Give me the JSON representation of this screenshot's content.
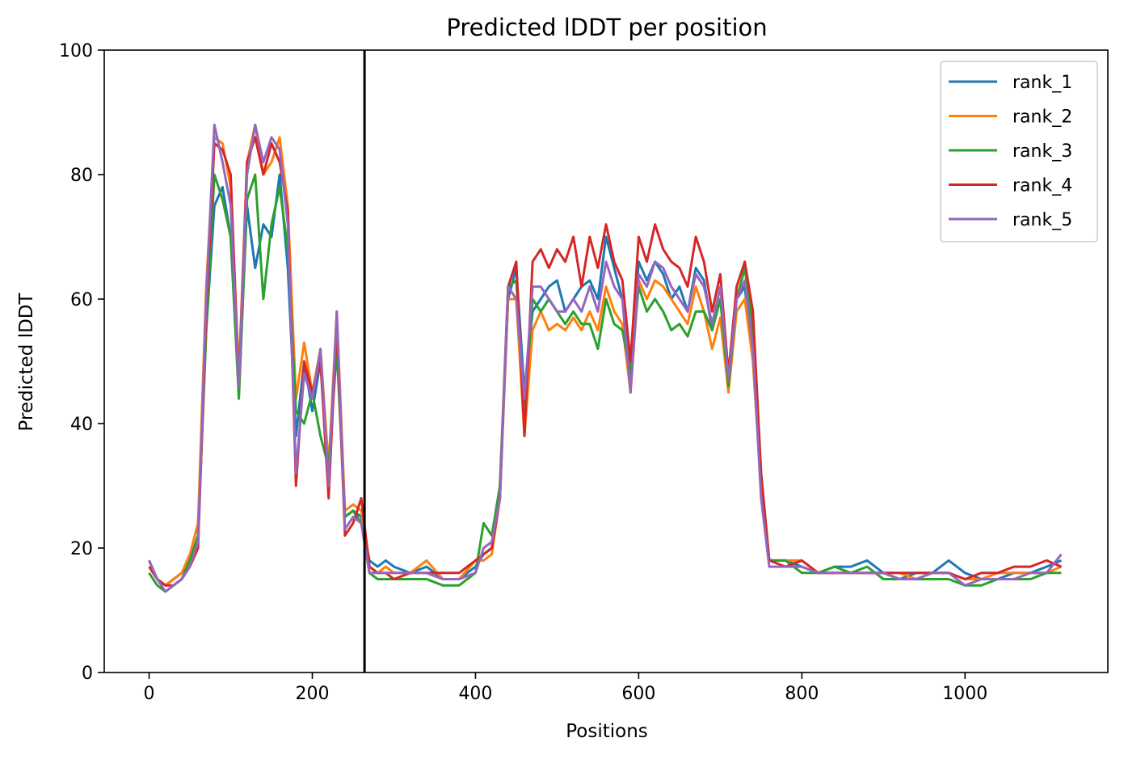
{
  "chart_data": {
    "type": "line",
    "title": "Predicted lDDT per position",
    "xlabel": "Positions",
    "ylabel": "Predicted lDDT",
    "xlim": [
      -55,
      1175
    ],
    "ylim": [
      0,
      100
    ],
    "xticks": [
      0,
      200,
      400,
      600,
      800,
      1000
    ],
    "yticks": [
      0,
      20,
      40,
      60,
      80,
      100
    ],
    "grid": false,
    "legend_position": "top-right",
    "vertical_lines": [
      {
        "x": 264,
        "color": "#000000"
      }
    ],
    "x": [
      0,
      10,
      20,
      30,
      40,
      50,
      60,
      70,
      80,
      90,
      100,
      110,
      120,
      130,
      140,
      150,
      160,
      170,
      180,
      190,
      200,
      210,
      220,
      230,
      240,
      250,
      260,
      270,
      280,
      290,
      300,
      320,
      340,
      360,
      380,
      400,
      410,
      420,
      430,
      440,
      450,
      460,
      470,
      480,
      490,
      500,
      510,
      520,
      530,
      540,
      550,
      560,
      570,
      580,
      590,
      600,
      610,
      620,
      630,
      640,
      650,
      660,
      670,
      680,
      690,
      700,
      710,
      720,
      730,
      740,
      750,
      760,
      780,
      800,
      820,
      840,
      860,
      880,
      900,
      920,
      940,
      960,
      980,
      1000,
      1020,
      1040,
      1060,
      1080,
      1100,
      1118
    ],
    "series": [
      {
        "name": "rank_1",
        "color": "#1f77b4",
        "values": [
          18,
          15,
          14,
          15,
          16,
          18,
          22,
          55,
          75,
          78,
          70,
          45,
          75,
          65,
          72,
          70,
          80,
          65,
          38,
          50,
          42,
          50,
          32,
          55,
          25,
          26,
          25,
          18,
          17,
          18,
          17,
          16,
          17,
          15,
          15,
          17,
          19,
          20,
          30,
          60,
          65,
          45,
          58,
          60,
          62,
          63,
          58,
          60,
          62,
          63,
          60,
          70,
          65,
          60,
          48,
          66,
          63,
          66,
          64,
          60,
          62,
          58,
          65,
          63,
          55,
          60,
          48,
          60,
          62,
          50,
          30,
          18,
          18,
          17,
          16,
          17,
          17,
          18,
          16,
          15,
          16,
          16,
          18,
          16,
          15,
          15,
          16,
          16,
          17,
          18
        ]
      },
      {
        "name": "rank_2",
        "color": "#ff7f0e",
        "values": [
          18,
          15,
          14,
          15,
          16,
          19,
          24,
          62,
          86,
          85,
          78,
          48,
          82,
          88,
          80,
          82,
          86,
          75,
          44,
          53,
          45,
          52,
          33,
          58,
          26,
          27,
          26,
          17,
          16,
          17,
          16,
          16,
          18,
          15,
          15,
          18,
          18,
          19,
          28,
          60,
          60,
          38,
          55,
          58,
          55,
          56,
          55,
          57,
          55,
          58,
          55,
          62,
          58,
          56,
          45,
          63,
          60,
          63,
          62,
          60,
          58,
          56,
          62,
          58,
          52,
          57,
          45,
          58,
          60,
          50,
          30,
          18,
          18,
          18,
          16,
          16,
          16,
          16,
          16,
          16,
          15,
          16,
          16,
          15,
          15,
          16,
          16,
          16,
          16,
          17
        ]
      },
      {
        "name": "rank_3",
        "color": "#2ca02c",
        "values": [
          16,
          14,
          13,
          14,
          15,
          18,
          22,
          55,
          80,
          76,
          70,
          44,
          76,
          80,
          60,
          72,
          78,
          68,
          42,
          40,
          45,
          38,
          33,
          52,
          25,
          26,
          24,
          16,
          15,
          15,
          15,
          15,
          15,
          14,
          14,
          16,
          24,
          22,
          30,
          62,
          63,
          42,
          60,
          58,
          60,
          58,
          56,
          58,
          56,
          56,
          52,
          60,
          56,
          55,
          48,
          62,
          58,
          60,
          58,
          55,
          56,
          54,
          58,
          58,
          55,
          60,
          46,
          60,
          65,
          55,
          32,
          18,
          18,
          16,
          16,
          17,
          16,
          17,
          15,
          15,
          15,
          15,
          15,
          14,
          14,
          15,
          15,
          15,
          16,
          16
        ]
      },
      {
        "name": "rank_4",
        "color": "#d62728",
        "values": [
          17,
          15,
          14,
          14,
          15,
          17,
          20,
          58,
          85,
          84,
          80,
          46,
          82,
          86,
          80,
          85,
          82,
          74,
          30,
          50,
          45,
          50,
          28,
          56,
          22,
          24,
          28,
          17,
          16,
          16,
          15,
          16,
          16,
          16,
          16,
          18,
          19,
          20,
          28,
          62,
          66,
          38,
          66,
          68,
          65,
          68,
          66,
          70,
          62,
          70,
          65,
          72,
          66,
          63,
          50,
          70,
          66,
          72,
          68,
          66,
          65,
          62,
          70,
          66,
          58,
          64,
          48,
          62,
          66,
          58,
          32,
          18,
          17,
          18,
          16,
          16,
          16,
          16,
          16,
          16,
          16,
          16,
          16,
          15,
          16,
          16,
          17,
          17,
          18,
          17
        ]
      },
      {
        "name": "rank_5",
        "color": "#9467bd",
        "values": [
          18,
          15,
          13,
          14,
          15,
          17,
          21,
          60,
          88,
          82,
          75,
          46,
          80,
          88,
          82,
          86,
          84,
          72,
          32,
          48,
          44,
          52,
          30,
          58,
          23,
          25,
          24,
          16,
          16,
          16,
          16,
          16,
          16,
          15,
          15,
          16,
          20,
          21,
          28,
          62,
          60,
          44,
          62,
          62,
          60,
          58,
          58,
          60,
          58,
          62,
          58,
          66,
          62,
          60,
          45,
          64,
          62,
          66,
          65,
          62,
          60,
          58,
          64,
          62,
          56,
          62,
          47,
          60,
          63,
          52,
          28,
          17,
          17,
          17,
          16,
          16,
          16,
          16,
          16,
          15,
          15,
          16,
          16,
          14,
          15,
          15,
          15,
          16,
          16,
          19
        ]
      }
    ]
  }
}
